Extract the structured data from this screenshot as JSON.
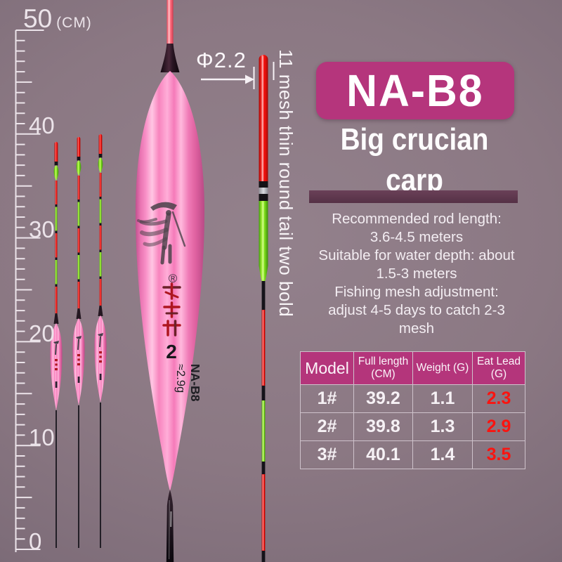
{
  "ruler": {
    "unit_label": "(CM)",
    "labels": [
      "50",
      "40",
      "30",
      "20",
      "10",
      "0"
    ]
  },
  "annotations": {
    "diameter_label": "Φ2.2",
    "vertical_note": "11 mesh thin round tail two bold"
  },
  "big_float": {
    "registered_mark": "®",
    "brand_characters": "楚英雄",
    "size_number": "2",
    "weight_label": "≈2.9g",
    "model_label": "NA-B8"
  },
  "product_header": {
    "model_badge": "NA-B8",
    "subtitle_line1": "Big crucian",
    "subtitle_line2": "carp"
  },
  "description": {
    "lines": [
      "Recommended rod length:",
      "3.6-4.5 meters",
      "Suitable for water depth: about",
      "1.5-3 meters",
      "Fishing mesh adjustment:",
      "adjust 4-5 days to catch 2-3",
      "mesh"
    ]
  },
  "spec_table": {
    "headers": [
      "Model",
      "Full length (CM)",
      "Weight (G)",
      "Eat Lead (G)"
    ],
    "rows": [
      {
        "model": "1#",
        "full_length": "39.2",
        "weight": "1.1",
        "eat_lead": "2.3"
      },
      {
        "model": "2#",
        "full_length": "39.8",
        "weight": "1.3",
        "eat_lead": "2.9"
      },
      {
        "model": "3#",
        "full_length": "40.1",
        "weight": "1.4",
        "eat_lead": "3.5"
      }
    ]
  },
  "colors": {
    "accent_magenta": "#b5357c",
    "divider_purple": "#5e3850",
    "eat_lead_red": "#fa1410",
    "float_red": "#ee1410",
    "float_green": "#7fe61c",
    "float_pink": "#f985c0",
    "background": "#8b7883"
  }
}
